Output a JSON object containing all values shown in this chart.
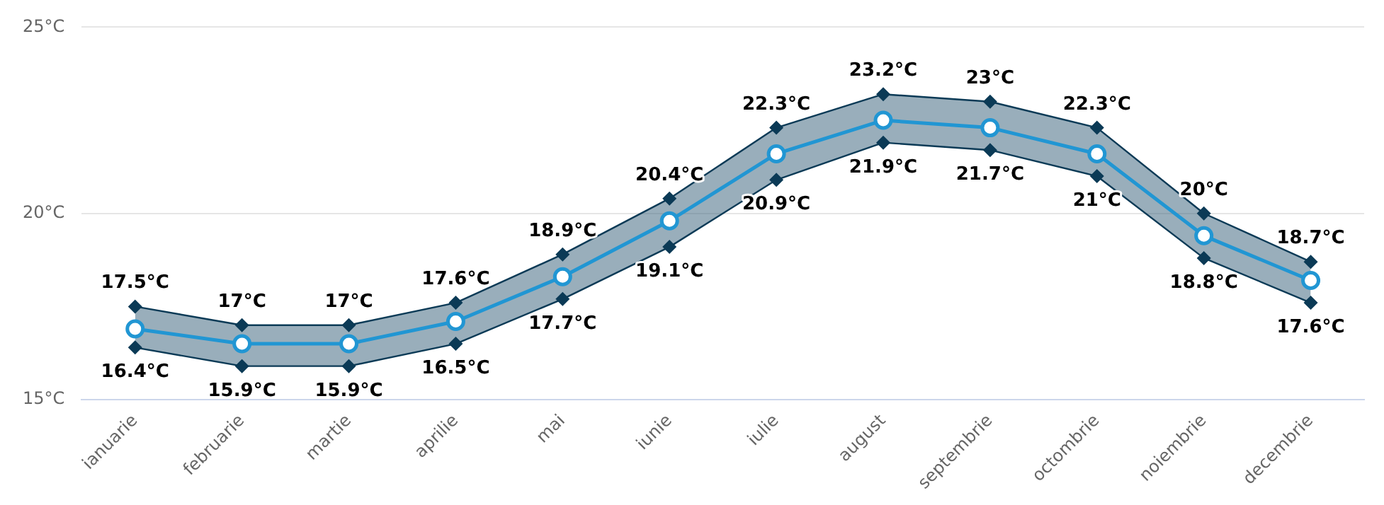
{
  "chart_data": {
    "type": "line",
    "categories": [
      "ianuarie",
      "februarie",
      "martie",
      "aprilie",
      "mai",
      "iunie",
      "iulie",
      "august",
      "septembrie",
      "octombrie",
      "noiembrie",
      "decembrie"
    ],
    "series": [
      {
        "color": "#0b3a56",
        "marker": "diamond",
        "values": [
          17.5,
          17,
          17,
          17.6,
          18.9,
          20.4,
          22.3,
          23.2,
          23,
          22.3,
          20,
          18.7
        ]
      },
      {
        "color": "#0b3a56",
        "marker": "diamond",
        "values": [
          16.4,
          15.9,
          15.9,
          16.5,
          17.7,
          19.1,
          20.9,
          21.9,
          21.7,
          21,
          18.8,
          17.6
        ]
      },
      {
        "color": "#2196d3",
        "values": [
          16.9,
          16.5,
          16.5,
          17.1,
          18.3,
          19.8,
          21.6,
          22.5,
          22.3,
          21.6,
          19.4,
          18.2
        ],
        "lower": [
          16.4,
          15.9,
          15.9,
          16.5,
          17.7,
          19.1,
          20.9,
          21.9,
          21.7,
          21,
          18.8,
          17.6
        ],
        "upper": [
          17.5,
          17,
          17,
          17.6,
          18.9,
          20.4,
          22.3,
          23.2,
          23,
          22.3,
          20,
          18.7
        ]
      }
    ],
    "ylim": [
      15,
      25
    ],
    "yticks": [
      {
        "value": 15,
        "label": "15°C"
      },
      {
        "value": 20,
        "label": "20°C"
      },
      {
        "value": 25,
        "label": "25°C"
      }
    ],
    "grid": "y",
    "legend": false,
    "marker": "circle",
    "line_style": "solid",
    "annotations": [
      {
        "text": "17.5°C",
        "x": "ianuarie",
        "y": 17.5
      },
      {
        "text": "16.4°C",
        "x": "ianuarie",
        "y": 16.4
      },
      {
        "text": "17°C",
        "x": "februarie",
        "y": 17
      },
      {
        "text": "15.9°C",
        "x": "februarie",
        "y": 15.9
      },
      {
        "text": "17°C",
        "x": "martie",
        "y": 17
      },
      {
        "text": "15.9°C",
        "x": "martie",
        "y": 15.9
      },
      {
        "text": "17.6°C",
        "x": "aprilie",
        "y": 17.6
      },
      {
        "text": "16.5°C",
        "x": "aprilie",
        "y": 16.5
      },
      {
        "text": "18.9°C",
        "x": "mai",
        "y": 18.9
      },
      {
        "text": "17.7°C",
        "x": "mai",
        "y": 17.7
      },
      {
        "text": "20.4°C",
        "x": "iunie",
        "y": 20.4
      },
      {
        "text": "19.1°C",
        "x": "iunie",
        "y": 19.1
      },
      {
        "text": "22.3°C",
        "x": "iulie",
        "y": 22.3
      },
      {
        "text": "20.9°C",
        "x": "iulie",
        "y": 20.9
      },
      {
        "text": "23.2°C",
        "x": "august",
        "y": 23.2
      },
      {
        "text": "21.9°C",
        "x": "august",
        "y": 21.9
      },
      {
        "text": "23°C",
        "x": "septembrie",
        "y": 23
      },
      {
        "text": "21.7°C",
        "x": "septembrie",
        "y": 21.7
      },
      {
        "text": "22.3°C",
        "x": "octombrie",
        "y": 22.3
      },
      {
        "text": "21°C",
        "x": "octombrie",
        "y": 21
      },
      {
        "text": "20°C",
        "x": "noiembrie",
        "y": 20
      },
      {
        "text": "18.8°C",
        "x": "noiembrie",
        "y": 18.8
      },
      {
        "text": "18.7°C",
        "x": "decembrie",
        "y": 18.7
      },
      {
        "text": "17.6°C",
        "x": "decembrie",
        "y": 17.6
      }
    ]
  }
}
